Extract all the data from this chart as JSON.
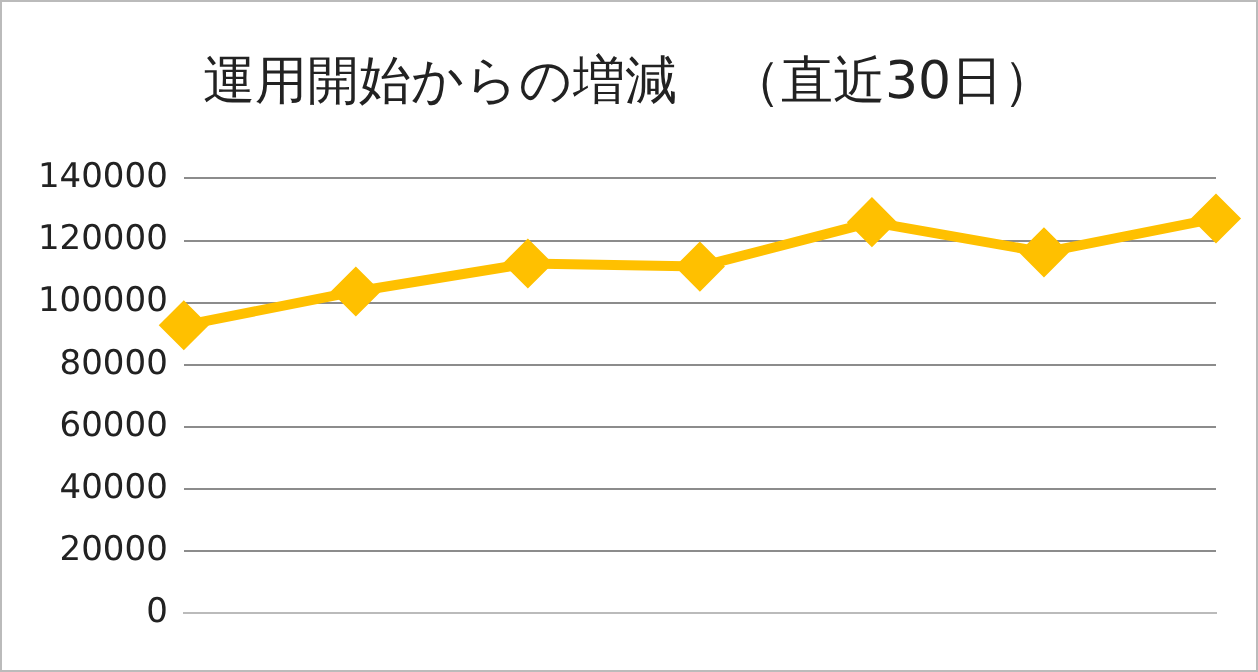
{
  "chart_data": {
    "type": "line",
    "title": "運用開始からの増減　（直近30日）",
    "categories": [
      null,
      null,
      null,
      null,
      null,
      null,
      null
    ],
    "series": [
      {
        "color": "#ffc000",
        "values": [
          92700,
          103600,
          112600,
          111600,
          125900,
          116200,
          127100
        ]
      }
    ],
    "ylim": [
      0,
      140000
    ],
    "yticks": [
      0,
      20000,
      40000,
      60000,
      80000,
      100000,
      120000,
      140000
    ],
    "grid": "y",
    "legend": false,
    "marker": "diamond",
    "line_style": "solid"
  }
}
